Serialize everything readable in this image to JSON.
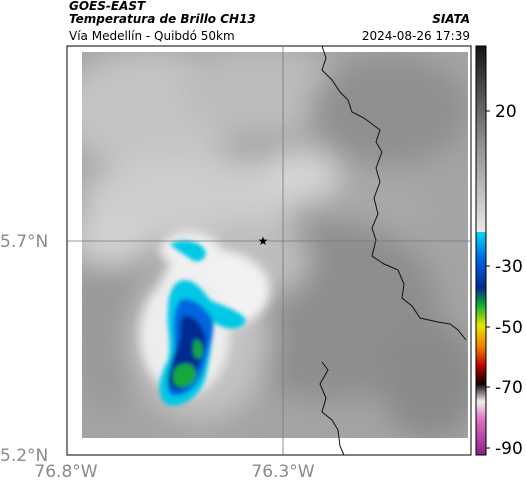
{
  "header": {
    "satellite": "GOES-EAST",
    "product": "Temperatura de Brillo CH13",
    "region": "Vía Medellín - Quibdó 50km",
    "source": "SIATA",
    "datetime": "2024-08-26 17:39"
  },
  "map": {
    "lon_ticks": [
      {
        "value": -76.8,
        "label": "76.8°W"
      },
      {
        "value": -76.3,
        "label": "76.3°W"
      }
    ],
    "lat_ticks": [
      {
        "value": 5.7,
        "label": "5.7°N"
      },
      {
        "value": 5.2,
        "label": "5.2°N"
      }
    ],
    "marker": {
      "symbol": "★"
    }
  },
  "colorbar": {
    "ticks": [
      {
        "value": 20,
        "label": "20"
      },
      {
        "value": -30,
        "label": "-30"
      },
      {
        "value": -50,
        "label": "-50"
      },
      {
        "value": -70,
        "label": "-70"
      },
      {
        "value": -90,
        "label": "-90"
      }
    ],
    "colors": {
      "warm_top": "#151515",
      "warm_bottom": "#e8e8e8",
      "cyan": "#00c8e6",
      "blue": "#0050dc",
      "navy": "#002080",
      "green": "#10b030",
      "yellow": "#e6e600",
      "orange": "#f07800",
      "red": "#c00000",
      "dark": "#100000",
      "pink": "#e070c0",
      "magenta": "#a020a0"
    }
  }
}
